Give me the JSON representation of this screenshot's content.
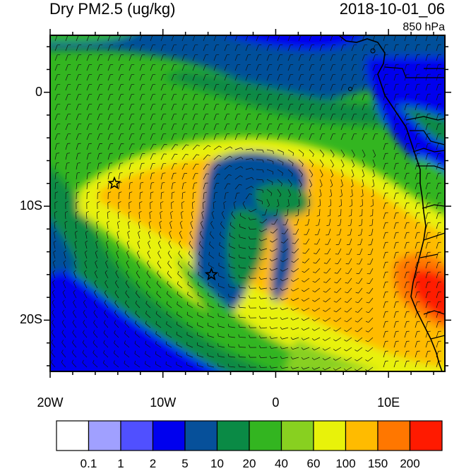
{
  "header": {
    "title": "Dry PM2.5 (ug/kg)",
    "datetime": "2018-10-01_06",
    "level": "850 hPa"
  },
  "map": {
    "lon_range": [
      -20,
      15
    ],
    "lat_range": [
      -24.5,
      5
    ],
    "lat_ticks": [
      {
        "value": 0,
        "label": "0"
      },
      {
        "value": -10,
        "label": "10S"
      },
      {
        "value": -20,
        "label": "20S"
      }
    ],
    "lon_ticks": [
      {
        "value": -20,
        "label": "20W"
      },
      {
        "value": -10,
        "label": "10W"
      },
      {
        "value": 0,
        "label": "0"
      },
      {
        "value": 10,
        "label": "10E"
      }
    ],
    "markers": [
      {
        "name": "star-marker",
        "lon": -14.3,
        "lat": -8.0
      },
      {
        "name": "star-marker",
        "lon": -5.7,
        "lat": -16.0
      }
    ]
  },
  "colorbar": {
    "colors": [
      "#ffffff",
      "#a0a0ff",
      "#5050ff",
      "#0000ee",
      "#06509a",
      "#0a8a45",
      "#33b520",
      "#88d020",
      "#e8f20a",
      "#ffbb00",
      "#ff7700",
      "#ff1a00"
    ],
    "labels": [
      "0.1",
      "1",
      "2",
      "5",
      "10",
      "20",
      "40",
      "60",
      "100",
      "150",
      "200"
    ]
  }
}
